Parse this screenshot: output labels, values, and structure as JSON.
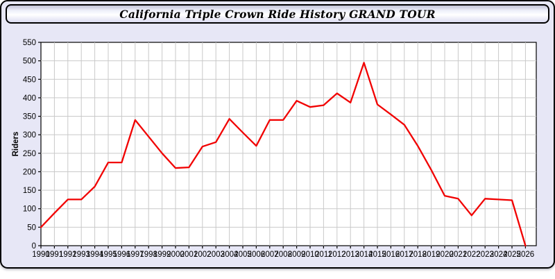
{
  "window": {
    "title": "California Triple Crown Ride History GRAND TOUR"
  },
  "chart_data": {
    "type": "line",
    "title": "California Triple Crown Ride History GRAND TOUR",
    "series_name": "Riders",
    "xlabel": "",
    "ylabel": "Riders",
    "x": [
      1990,
      1991,
      1992,
      1993,
      1994,
      1995,
      1996,
      1997,
      1998,
      1999,
      2000,
      2001,
      2002,
      2003,
      2004,
      2005,
      2006,
      2007,
      2008,
      2009,
      2010,
      2011,
      2012,
      2013,
      2014,
      2015,
      2016,
      2017,
      2018,
      2019,
      2020,
      2021,
      2022,
      2023,
      2024,
      2025,
      2026
    ],
    "values": [
      50,
      88,
      125,
      125,
      160,
      225,
      225,
      340,
      295,
      250,
      210,
      212,
      268,
      280,
      343,
      306,
      270,
      340,
      340,
      392,
      375,
      380,
      412,
      387,
      495,
      382,
      355,
      327,
      270,
      205,
      135,
      127,
      82,
      127,
      125,
      123,
      0
    ],
    "ylim": [
      0,
      550
    ],
    "ytick_step": 50,
    "grid": true,
    "legend": "none",
    "line_color": "#f10000",
    "grid_color": "#c9c9c9",
    "plot_bg": "#ffffff",
    "axis_color": "#000000"
  },
  "colors": {
    "page_bg": "#e7e7f6",
    "accent_line": "#f10000"
  }
}
